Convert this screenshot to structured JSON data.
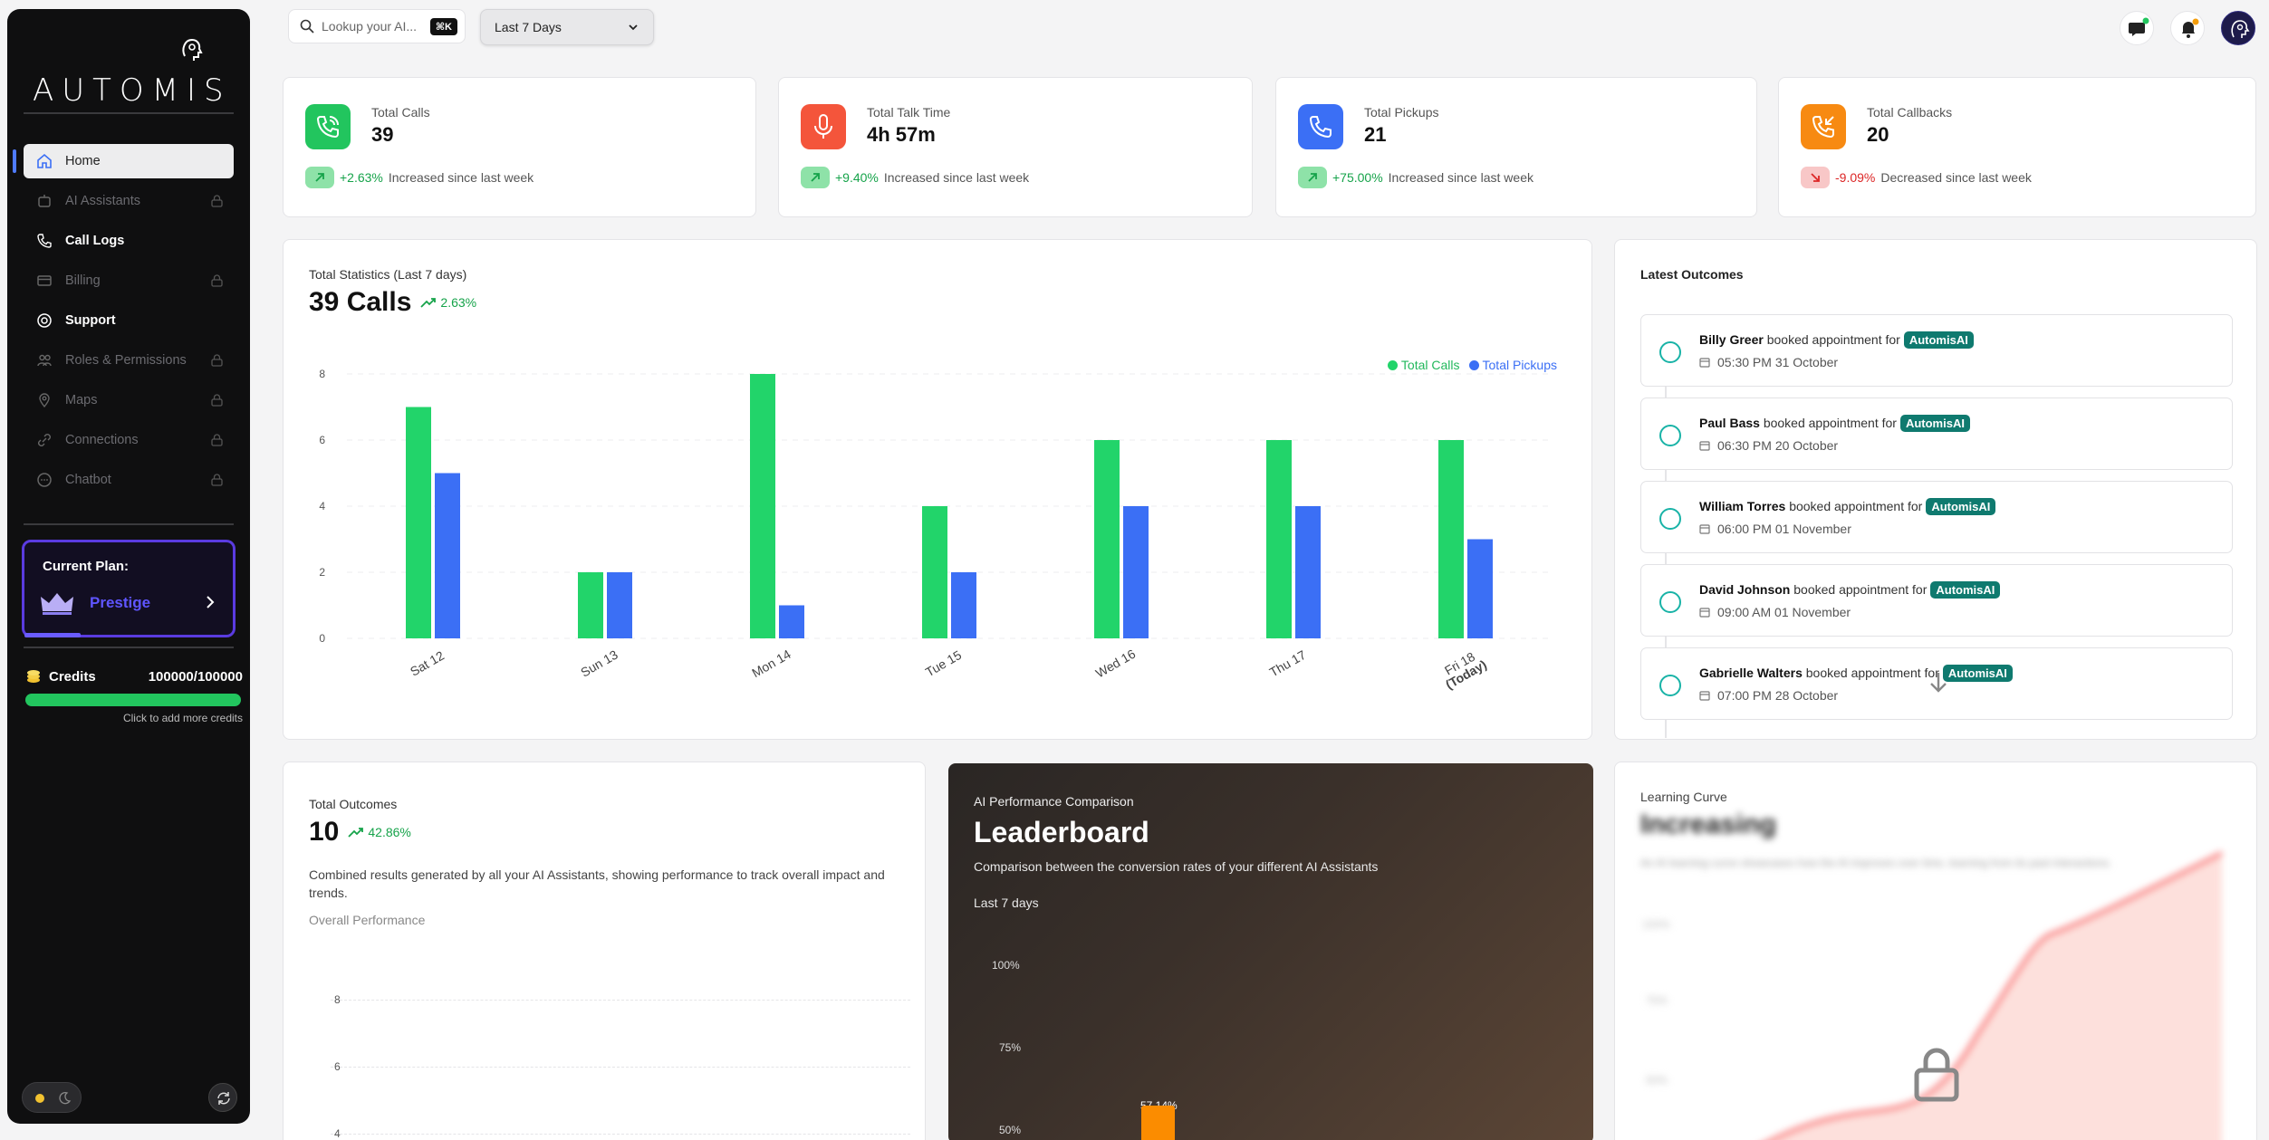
{
  "brand": {
    "name": "AUTOMIS"
  },
  "sidebar": {
    "items": [
      {
        "label": "Home",
        "icon": "home-icon",
        "locked": false,
        "active": true
      },
      {
        "label": "AI Assistants",
        "icon": "robot-icon",
        "locked": true,
        "active": false
      },
      {
        "label": "Call Logs",
        "icon": "phone-icon",
        "locked": false,
        "active": false
      },
      {
        "label": "Billing",
        "icon": "card-icon",
        "locked": true,
        "active": false
      },
      {
        "label": "Support",
        "icon": "support-icon",
        "locked": false,
        "active": false
      },
      {
        "label": "Roles & Permissions",
        "icon": "users-icon",
        "locked": true,
        "active": false
      },
      {
        "label": "Maps",
        "icon": "map-pin-icon",
        "locked": true,
        "active": false
      },
      {
        "label": "Connections",
        "icon": "link-icon",
        "locked": true,
        "active": false
      },
      {
        "label": "Chatbot",
        "icon": "chat-icon",
        "locked": true,
        "active": false
      }
    ],
    "plan": {
      "title": "Current Plan:",
      "name": "Prestige"
    },
    "credits": {
      "label": "Credits",
      "value": "100000/100000",
      "fill": 1.0,
      "note": "Click to add more credits"
    }
  },
  "topbar": {
    "search_placeholder": "Lookup your AI...",
    "shortcut": "⌘K",
    "range": "Last 7 Days"
  },
  "stats": [
    {
      "label": "Total Calls",
      "value": "39",
      "pct": "+2.63%",
      "note": "Increased since last week",
      "dir": "up",
      "color": "#22c55e",
      "icon": "phone-icon"
    },
    {
      "label": "Total Talk Time",
      "value": "4h 57m",
      "pct": "+9.40%",
      "note": "Increased since last week",
      "dir": "up",
      "color": "#f4553b",
      "icon": "microphone-icon"
    },
    {
      "label": "Total Pickups",
      "value": "21",
      "pct": "+75.00%",
      "note": "Increased since last week",
      "dir": "up",
      "color": "#3b6ff5",
      "icon": "phone-icon"
    },
    {
      "label": "Total Callbacks",
      "value": "20",
      "pct": "-9.09%",
      "note": "Decreased since last week",
      "dir": "down",
      "color": "#f78a12",
      "icon": "phone-callback-icon"
    }
  ],
  "statistics": {
    "title": "Total Statistics (Last 7 days)",
    "big": "39 Calls",
    "delta": "2.63%"
  },
  "chart_data": {
    "type": "bar",
    "categories": [
      "Sat 12",
      "Sun 13",
      "Mon 14",
      "Tue 15",
      "Wed 16",
      "Thu 17",
      "Fri 18 (Today)"
    ],
    "series": [
      {
        "name": "Total Calls",
        "color": "#22d46a",
        "values": [
          7,
          2,
          8,
          4,
          6,
          6,
          6
        ]
      },
      {
        "name": "Total Pickups",
        "color": "#3b6ff5",
        "values": [
          5,
          2,
          1,
          2,
          4,
          4,
          3
        ]
      }
    ],
    "yticks": [
      0,
      2,
      4,
      6,
      8
    ],
    "ylim": [
      0,
      8
    ],
    "legend": "top-right"
  },
  "outcomes": {
    "title": "Latest Outcomes",
    "items": [
      {
        "name": "Billy Greer",
        "action": "booked appointment for",
        "tag": "AutomisAI",
        "time": "05:30 PM 31 October"
      },
      {
        "name": "Paul Bass",
        "action": "booked appointment for",
        "tag": "AutomisAI",
        "time": "06:30 PM 20 October"
      },
      {
        "name": "William Torres",
        "action": "booked appointment for",
        "tag": "AutomisAI",
        "time": "06:00 PM 01 November"
      },
      {
        "name": "David Johnson",
        "action": "booked appointment for",
        "tag": "AutomisAI",
        "time": "09:00 AM 01 November"
      },
      {
        "name": "Gabrielle Walters",
        "action": "booked appointment for",
        "tag": "AutomisAI",
        "time": "07:00 PM 28 October"
      }
    ]
  },
  "total_outcomes": {
    "title": "Total Outcomes",
    "big": "10",
    "delta": "42.86%",
    "desc": "Combined results generated by all your AI Assistants, showing performance to track overall impact and trends.",
    "sub": "Overall Performance",
    "yticks": [
      "8",
      "6",
      "4"
    ]
  },
  "leaderboard": {
    "kicker": "AI Performance Comparison",
    "title": "Leaderboard",
    "desc": "Comparison between the conversion rates of your different AI Assistants",
    "period": "Last 7 days",
    "yticks": [
      "100%",
      "75%",
      "50%"
    ],
    "bar_label": "57.14%",
    "bar_value": 57.14
  },
  "learning": {
    "kicker": "Learning Curve",
    "title": "Increasing",
    "desc": "An AI learning curve showcases how the AI improves over time, learning from its past interactions.",
    "yticks": [
      "100%",
      "75%",
      "50%"
    ]
  }
}
